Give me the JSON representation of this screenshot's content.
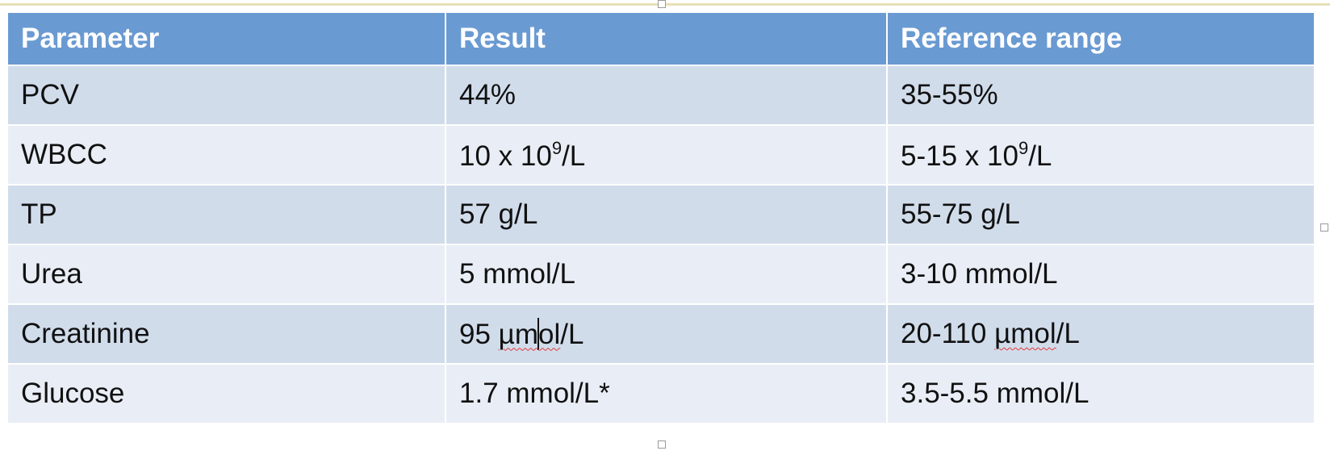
{
  "table": {
    "headers": [
      "Parameter",
      "Result",
      "Reference range"
    ],
    "rows": [
      {
        "parameter": "PCV",
        "result": "44%",
        "reference": "35-55%"
      },
      {
        "parameter": "WBCC",
        "result": "10 x 10",
        "result_sup": "9",
        "result_suffix": "/L",
        "reference": "5-15 x 10",
        "reference_sup": "9",
        "reference_suffix": "/L"
      },
      {
        "parameter": "TP",
        "result": "57 g/L",
        "reference": "55-75 g/L"
      },
      {
        "parameter": "Urea",
        "result": "5 mmol/L",
        "reference": "3-10 mmol/L"
      },
      {
        "parameter": "Creatinine",
        "result_pre": "95 ",
        "result_mark_a": "µm",
        "result_mark_b": "ol",
        "result_post": "/L",
        "reference_pre": "20-110 ",
        "reference_mark": "µmol",
        "reference_post": "/L"
      },
      {
        "parameter": "Glucose",
        "result": "1.7 mmol/L*",
        "reference": "3.5-5.5 mmol/L"
      }
    ]
  },
  "colors": {
    "header_bg": "#6a9ad2",
    "row_odd_bg": "#d1dceb",
    "row_even_bg": "#e9eef6",
    "spell_underline": "#e03a3a"
  }
}
